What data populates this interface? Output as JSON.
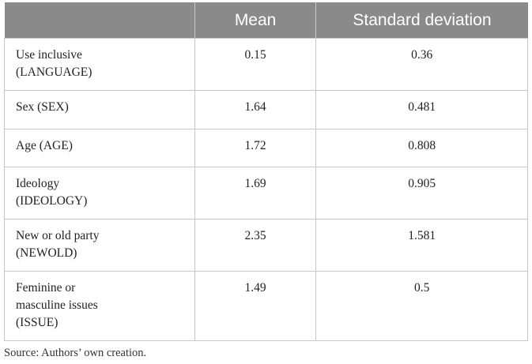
{
  "table": {
    "header": [
      "Mean",
      "Standard deviation"
    ],
    "rows": [
      [
        "Use inclusive\n(LANGUAGE)",
        0.15,
        0.36
      ],
      [
        "Sex (SEX)",
        1.64,
        0.481
      ],
      [
        "Age (AGE)",
        1.72,
        0.808
      ],
      [
        "Ideology\n(IDEOLOGY)",
        1.69,
        0.905
      ],
      [
        "New or old party\n(NEWOLD)",
        2.35,
        1.581
      ],
      [
        "Feminine or\nmasculine issues\n(ISSUE)",
        1.49,
        0.5
      ]
    ]
  },
  "footnote": "Source: Authors’ own creation."
}
